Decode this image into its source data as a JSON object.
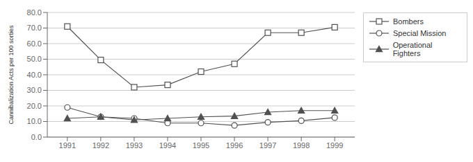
{
  "chart_data": {
    "type": "line",
    "x": [
      1991,
      1992,
      1993,
      1994,
      1995,
      1996,
      1997,
      1998,
      1999
    ],
    "series": [
      {
        "name": "Bombers",
        "color": "#505050",
        "marker": "square",
        "values": [
          71.0,
          49.5,
          32.0,
          33.5,
          42.0,
          47.0,
          67.0,
          67.0,
          70.5
        ]
      },
      {
        "name": "Special Mission",
        "color": "#505050",
        "marker": "circle",
        "values": [
          19.0,
          13.0,
          12.0,
          9.0,
          9.0,
          7.5,
          9.5,
          10.5,
          12.5
        ]
      },
      {
        "name": "Operational Fighters",
        "color": "#505050",
        "marker": "triangle",
        "values": [
          12.0,
          13.0,
          11.0,
          12.0,
          13.0,
          13.5,
          16.0,
          17.0,
          17.0
        ]
      }
    ],
    "ylabel": "Cannibalization Acts per 100 sorties",
    "xlim": [
      1990.4,
      1999.6
    ],
    "xticks": [
      1991,
      1992,
      1993,
      1994,
      1995,
      1996,
      1997,
      1998,
      1999
    ],
    "ylim": [
      0.0,
      80.0
    ],
    "yticks": [
      {
        "value": 0.0,
        "label": "0.0"
      },
      {
        "value": 10.0,
        "label": "10.0"
      },
      {
        "value": 20.0,
        "label": "20.0"
      },
      {
        "value": 30.0,
        "label": "30.0"
      },
      {
        "value": 40.0,
        "label": "40.0"
      },
      {
        "value": 50.0,
        "label": "50.0"
      },
      {
        "value": 60.0,
        "label": "60.0"
      },
      {
        "value": 70.0,
        "label": "70.0"
      },
      {
        "value": 80.0,
        "label": "80.0"
      }
    ],
    "grid": true,
    "legend": "upper right"
  }
}
